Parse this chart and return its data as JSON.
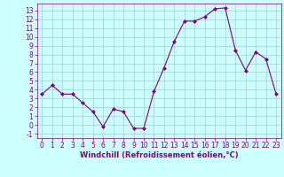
{
  "x": [
    0,
    1,
    2,
    3,
    4,
    5,
    6,
    7,
    8,
    9,
    10,
    11,
    12,
    13,
    14,
    15,
    16,
    17,
    18,
    19,
    20,
    21,
    22,
    23
  ],
  "y": [
    3.5,
    4.5,
    3.5,
    3.5,
    2.5,
    1.5,
    -0.2,
    1.8,
    1.5,
    -0.4,
    -0.4,
    3.8,
    6.5,
    9.5,
    11.8,
    11.8,
    12.3,
    13.2,
    13.3,
    8.5,
    6.2,
    8.3,
    7.5,
    3.5
  ],
  "line_color": "#800080",
  "marker": "D",
  "marker_size": 2.0,
  "bg_color": "#ccffff",
  "grid_color": "#aacccc",
  "xlabel": "Windchill (Refroidissement éolien,°C)",
  "ylim": [
    -1.5,
    13.8
  ],
  "xlim": [
    -0.5,
    23.5
  ],
  "yticks": [
    -1,
    0,
    1,
    2,
    3,
    4,
    5,
    6,
    7,
    8,
    9,
    10,
    11,
    12,
    13
  ],
  "xticks": [
    0,
    1,
    2,
    3,
    4,
    5,
    6,
    7,
    8,
    9,
    10,
    11,
    12,
    13,
    14,
    15,
    16,
    17,
    18,
    19,
    20,
    21,
    22,
    23
  ],
  "axis_color": "#800080",
  "tick_color": "#800080",
  "label_color": "#800080",
  "tick_fontsize": 5.5,
  "xlabel_fontsize": 6.0
}
